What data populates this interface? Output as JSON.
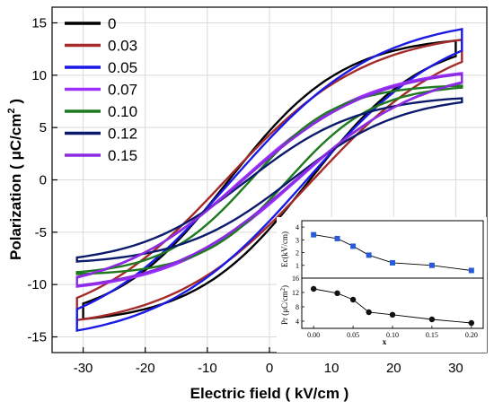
{
  "chart_data": [
    {
      "type": "line",
      "subtype": "hysteresis-loops",
      "title": "",
      "xlabel": "Electric field ( kV/cm )",
      "ylabel": "Polarization ( μC/cm² )",
      "ylabel_parts": {
        "prefix": "Polarization ( ",
        "mu": "μ",
        "unit": "C/cm",
        "sup": "2",
        "suffix": " )"
      },
      "xlim": [
        -35,
        35
      ],
      "ylim": [
        -16.5,
        16.5
      ],
      "xticks": [
        -30,
        -20,
        -10,
        0,
        10,
        20,
        30
      ],
      "xtick_labels": [
        "-30",
        "-20",
        "-10",
        "0",
        "10",
        "20",
        "30"
      ],
      "yticks": [
        -15,
        -10,
        -5,
        0,
        5,
        10,
        15
      ],
      "ytick_labels": [
        "-15",
        "-10",
        "-5",
        "0",
        "5",
        "10",
        "15"
      ],
      "grid": true,
      "legend_position": "top-left",
      "series": [
        {
          "name": "0",
          "color": "#000000",
          "xmax": 30,
          "pmax": 13.3,
          "ec": 6.5,
          "pr": 4.5
        },
        {
          "name": "0.03",
          "color": "#a52a2a",
          "xmax": 31,
          "pmax": 13.4,
          "ec": 7.0,
          "pr": 4.0
        },
        {
          "name": "0.05",
          "color": "#1a1ae6",
          "xmax": 31,
          "pmax": 14.4,
          "ec": 6.0,
          "pr": 3.6
        },
        {
          "name": "0.07",
          "color": "#9b30ff",
          "xmax": 31,
          "pmax": 10.2,
          "ec": 4.5,
          "pr": 2.2
        },
        {
          "name": "0.10",
          "color": "#1f7a1f",
          "xmax": 31,
          "pmax": 9.0,
          "ec": 3.0,
          "pr": 1.9
        },
        {
          "name": "0.12",
          "color": "#0c1a6b",
          "xmax": 31,
          "pmax": 7.8,
          "ec": 3.5,
          "pr": 1.5
        },
        {
          "name": "0.15",
          "color": "#8a2be2",
          "xmax": 31,
          "pmax": 10.1,
          "ec": 4.2,
          "pr": 2.0
        }
      ]
    },
    {
      "type": "scatter",
      "inset": "top",
      "ylabel": "Ec(kV/cm)",
      "ylim": [
        0,
        4.5
      ],
      "yticks": [
        1,
        2,
        3,
        4
      ],
      "ytick_labels": [
        "1",
        "2",
        "3",
        "4"
      ],
      "xlim": [
        -0.015,
        0.215
      ],
      "marker": "square",
      "color": "#2a5bd7",
      "x": [
        0.0,
        0.03,
        0.05,
        0.07,
        0.1,
        0.15,
        0.2
      ],
      "y": [
        3.4,
        3.1,
        2.5,
        1.8,
        1.2,
        1.0,
        0.6
      ]
    },
    {
      "type": "scatter",
      "inset": "bottom",
      "ylabel": "Pr (μC/cm²)",
      "ylabel_parts": {
        "prefix": "Pr (μC/cm",
        "sup": "2",
        "suffix": ")"
      },
      "ylim": [
        2,
        16
      ],
      "yticks": [
        4,
        8,
        12,
        16
      ],
      "ytick_labels": [
        "4",
        "8",
        "12",
        "16"
      ],
      "xlabel": "x",
      "xlim": [
        -0.015,
        0.215
      ],
      "xticks": [
        0.0,
        0.05,
        0.1,
        0.15,
        0.2
      ],
      "xtick_labels": [
        "0.00",
        "0.05",
        "0.10",
        "0.15",
        "0.20"
      ],
      "marker": "circle",
      "color": "#111111",
      "x": [
        0.0,
        0.03,
        0.05,
        0.07,
        0.1,
        0.15,
        0.2
      ],
      "y": [
        13.0,
        11.8,
        10.0,
        6.5,
        5.8,
        4.5,
        3.5
      ]
    }
  ]
}
